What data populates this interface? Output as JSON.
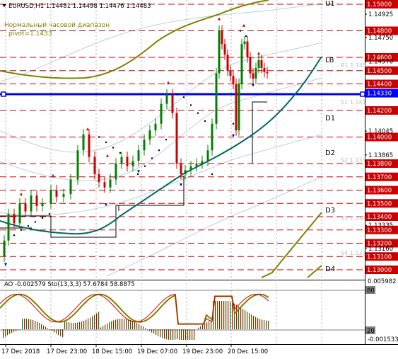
{
  "header": {
    "symbol_line": "EURUSD,H1  1.14481 1.14498 1.14476 1.14483",
    "indicator_name": "Нормальный часовой диапазон",
    "pivot_text": "pivot=1.1433"
  },
  "colors": {
    "red_level": "#cc0000",
    "blue_level": "#0000ff",
    "olive": "#808000",
    "teal": "#006666",
    "bull": "#008000",
    "bear": "#cc0000",
    "grid": "#c8c8c8",
    "black_label": "#000000"
  },
  "price_axis": {
    "ticks": [
      "1.15000",
      "1.14925",
      "1.14800",
      "1.14750",
      "1.14600",
      "1.14570",
      "1.14500",
      "1.14400",
      "1.14330",
      "1.14200",
      "1.14045",
      "1.14000",
      "1.13865",
      "1.13800",
      "1.13700",
      "1.13600",
      "1.13500",
      "1.13400",
      "1.13335",
      "1.13300",
      "1.13200",
      "1.13160",
      "1.13100",
      "1.13000"
    ],
    "red_boxes": [
      "1.15000",
      "1.14800",
      "1.14600",
      "1.14500",
      "1.14400",
      "1.14200",
      "1.14000",
      "1.13800",
      "1.13700",
      "1.13600",
      "1.13500",
      "1.13400",
      "1.13300",
      "1.13200",
      "1.13100",
      "1.13000"
    ],
    "blue_box": "1.14330"
  },
  "pivot_labels": [
    "U1",
    "LB",
    "D1",
    "D2",
    "D3",
    "D4"
  ],
  "faint_labels": [
    "R1 1.145",
    "S1 1.141",
    "S2 1.137",
    "S3 1.134",
    "S4 1.131"
  ],
  "oscillator": {
    "title": "AO -0.002579  Sto(13,3,3) 57.6784 58.8875",
    "max": "0.005982",
    "level_80": "80",
    "level_20": "20",
    "min": "-0.001533"
  },
  "time_axis": [
    "17 Dec 2018",
    "17 Dec 23:00",
    "18 Dec 15:00",
    "19 Dec 07:00",
    "19 Dec 23:00",
    "20 Dec 15:00"
  ]
}
